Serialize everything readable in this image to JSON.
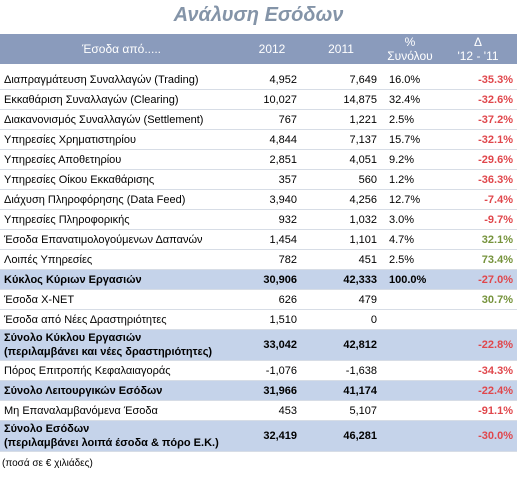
{
  "title": "Ανάλυση Εσόδων",
  "header": {
    "label": "Έσοδα από.....",
    "y2012": "2012",
    "y2011": "2011",
    "pct": "%\nΣυνόλου",
    "delta": "Δ\n'12 - '11"
  },
  "rows": [
    {
      "label": "Διαπραγμάτευση Συναλλαγών (Trading)",
      "y2012": "4,952",
      "y2011": "7,649",
      "pct": "16.0%",
      "delta": "-35.3%"
    },
    {
      "label": "Εκκαθάριση Συναλλαγών (Clearing)",
      "y2012": "10,027",
      "y2011": "14,875",
      "pct": "32.4%",
      "delta": "-32.6%"
    },
    {
      "label": "Διακανονισμός Συναλλαγών   (Settlement)",
      "y2012": "767",
      "y2011": "1,221",
      "pct": "2.5%",
      "delta": "-37.2%"
    },
    {
      "label": "Υπηρεσίες Χρηματιστηρίου",
      "y2012": "4,844",
      "y2011": "7,137",
      "pct": "15.7%",
      "delta": "-32.1%"
    },
    {
      "label": "Υπηρεσίες Αποθετηρίου",
      "y2012": "2,851",
      "y2011": "4,051",
      "pct": "9.2%",
      "delta": "-29.6%"
    },
    {
      "label": "Υπηρεσίες Οίκου Εκκαθάρισης",
      "y2012": "357",
      "y2011": "560",
      "pct": "1.2%",
      "delta": "-36.3%"
    },
    {
      "label": "Διάχυση Πληροφόρησης (Data Feed)",
      "y2012": "3,940",
      "y2011": "4,256",
      "pct": "12.7%",
      "delta": "-7.4%"
    },
    {
      "label": "Υπηρεσίες Πληροφορικής",
      "y2012": "932",
      "y2011": "1,032",
      "pct": "3.0%",
      "delta": "-9.7%"
    },
    {
      "label": "Έσοδα Επανατιμολογούμενων Δαπανών",
      "y2012": "1,454",
      "y2011": "1,101",
      "pct": "4.7%",
      "delta": "32.1%"
    },
    {
      "label": "Λοιπές Υπηρεσίες",
      "y2012": "782",
      "y2011": "451",
      "pct": "2.5%",
      "delta": "73.4%"
    },
    {
      "label": "Κύκλος Κύριων Εργασιών",
      "y2012": "30,906",
      "y2011": "42,333",
      "pct": "100.0%",
      "delta": "-27.0%",
      "hl": true
    },
    {
      "label": "Έσοδα X-NET",
      "y2012": "626",
      "y2011": "479",
      "pct": "",
      "delta": "30.7%"
    },
    {
      "label": "Έσοδα από Νέες Δραστηριότητες",
      "y2012": "1,510",
      "y2011": "0",
      "pct": "",
      "delta": ""
    },
    {
      "label": "Σύνολο Κύκλου Εργασιών\n(περιλαμβάνει και νέες δραστηριότητες)",
      "y2012": "33,042",
      "y2011": "42,812",
      "pct": "",
      "delta": "-22.8%",
      "hl": true,
      "tall": true
    },
    {
      "label": "Πόρος Επιτροπής Κεφαλαιαγοράς",
      "y2012": "-1,076",
      "y2011": "-1,638",
      "pct": "",
      "delta": "-34.3%"
    },
    {
      "label": "Σύνολο Λειτουργικών Εσόδων",
      "y2012": "31,966",
      "y2011": "41,174",
      "pct": "",
      "delta": "-22.4%",
      "hl": true
    },
    {
      "label": "Μη Επαναλαμβανόμενα Έσοδα",
      "y2012": "453",
      "y2011": "5,107",
      "pct": "",
      "delta": "-91.1%"
    },
    {
      "label": "Σύνολο Εσόδων\n(περιλαμβάνει λοιπά έσοδα & πόρο Ε.Κ.)",
      "y2012": "32,419",
      "y2011": "46,281",
      "pct": "",
      "delta": "-30.0%",
      "hl": true,
      "tall": true
    }
  ],
  "footnote": "(ποσά σε € χιλιάδες)",
  "colors": {
    "header_bg": "#8a9bbc",
    "highlight_bg": "#c5d3ea",
    "negative": "#e0474c",
    "positive": "#76933c",
    "title": "#8494a8"
  }
}
